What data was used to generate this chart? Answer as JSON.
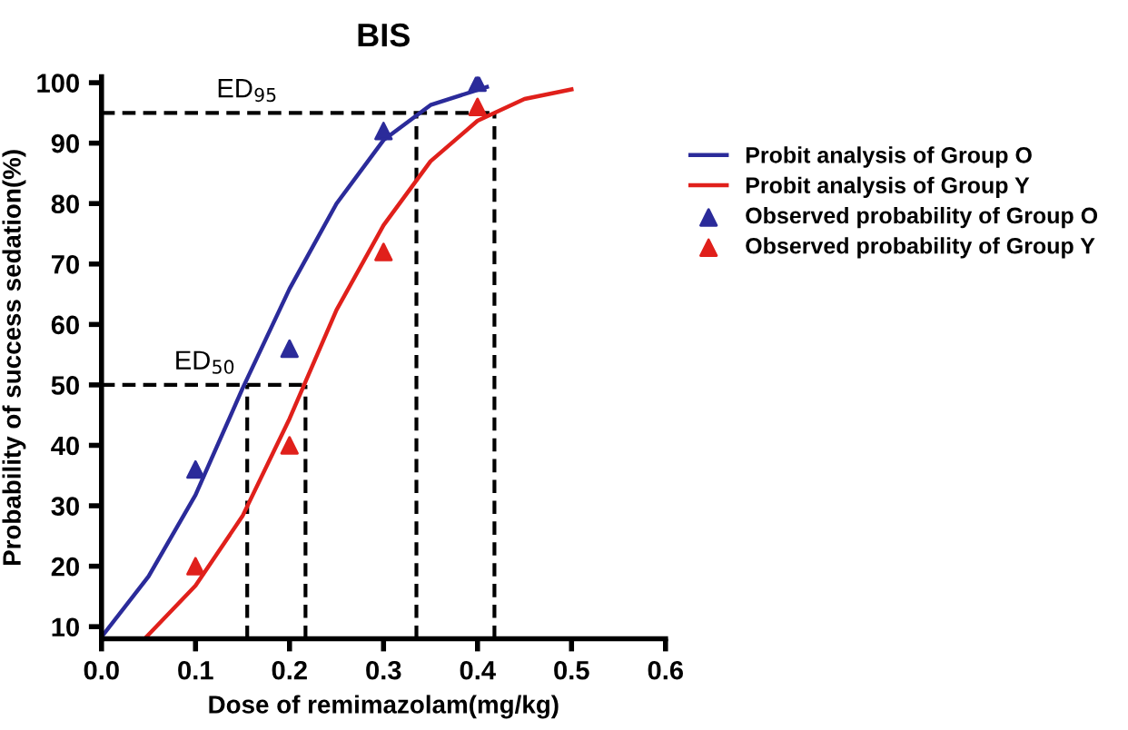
{
  "chart_data": {
    "type": "line",
    "title": "BIS",
    "xlabel": "Dose of remimazolam(mg/kg)",
    "ylabel": "Probability of success sedation(%)",
    "xlim": [
      0,
      0.6
    ],
    "ylim": [
      8,
      101
    ],
    "xticks": [
      {
        "value": 0,
        "label": "0.0"
      },
      0.1,
      0.2,
      0.3,
      0.4,
      0.5,
      0.6
    ],
    "yticks": [
      10,
      20,
      30,
      40,
      50,
      60,
      70,
      80,
      90,
      100
    ],
    "grid": false,
    "legend": "right",
    "annotations": [
      {
        "text": "ED$_{95}$",
        "x": 0.155,
        "y": 95
      },
      {
        "text": "ED$_{50}$",
        "x": 0.11,
        "y": 50
      }
    ],
    "series": [
      {
        "name": "Probit analysis of Group O",
        "color": "#2b2b9a",
        "marker": "none",
        "line_style": "solid",
        "x": [
          0,
          0.05,
          0.1,
          0.15,
          0.2,
          0.25,
          0.3,
          0.35,
          0.41
        ],
        "values": [
          8.3,
          18.3,
          31.8,
          49.4,
          65.9,
          80,
          90.5,
          96.3,
          99.3
        ]
      },
      {
        "name": "Probit analysis of Group Y",
        "color": "#e0201b",
        "marker": "none",
        "line_style": "solid",
        "x": [
          0.047,
          0.1,
          0.15,
          0.2,
          0.25,
          0.3,
          0.35,
          0.4,
          0.45,
          0.5
        ],
        "values": [
          8.2,
          16.8,
          28.3,
          44.4,
          62.4,
          76.4,
          87,
          93.7,
          97.3,
          98.9
        ]
      },
      {
        "name": "Observed probability of Group O",
        "type": "scatter",
        "color": "#2b2b9a",
        "marker": "triangle",
        "x": [
          0.1,
          0.2,
          0.3,
          0.4
        ],
        "values": [
          36,
          56,
          92,
          100
        ]
      },
      {
        "name": "Observed probability of Group Y",
        "type": "scatter",
        "color": "#e0201b",
        "marker": "triangle",
        "x": [
          0.1,
          0.2,
          0.3,
          0.4
        ],
        "values": [
          20,
          40,
          72,
          96
        ]
      },
      {
        "type": "line",
        "color": "#000000",
        "marker": "none",
        "line_style": "dashed",
        "x": [
          0,
          0.418
        ],
        "values": [
          95,
          95
        ]
      },
      {
        "type": "line",
        "color": "#000000",
        "marker": "none",
        "line_style": "dashed",
        "x": [
          0.335,
          0.335
        ],
        "values": [
          8,
          95
        ]
      },
      {
        "type": "line",
        "color": "#000000",
        "marker": "none",
        "line_style": "dashed",
        "x": [
          0.418,
          0.418
        ],
        "values": [
          8,
          95
        ]
      },
      {
        "type": "line",
        "color": "#000000",
        "marker": "none",
        "line_style": "dashed",
        "x": [
          0,
          0.217
        ],
        "values": [
          50,
          50
        ]
      },
      {
        "type": "line",
        "color": "#000000",
        "marker": "none",
        "line_style": "dashed",
        "x": [
          0.155,
          0.155
        ],
        "values": [
          8,
          50
        ]
      },
      {
        "type": "line",
        "color": "#000000",
        "marker": "none",
        "line_style": "dashed",
        "x": [
          0.217,
          0.217
        ],
        "values": [
          8,
          50
        ]
      }
    ]
  }
}
